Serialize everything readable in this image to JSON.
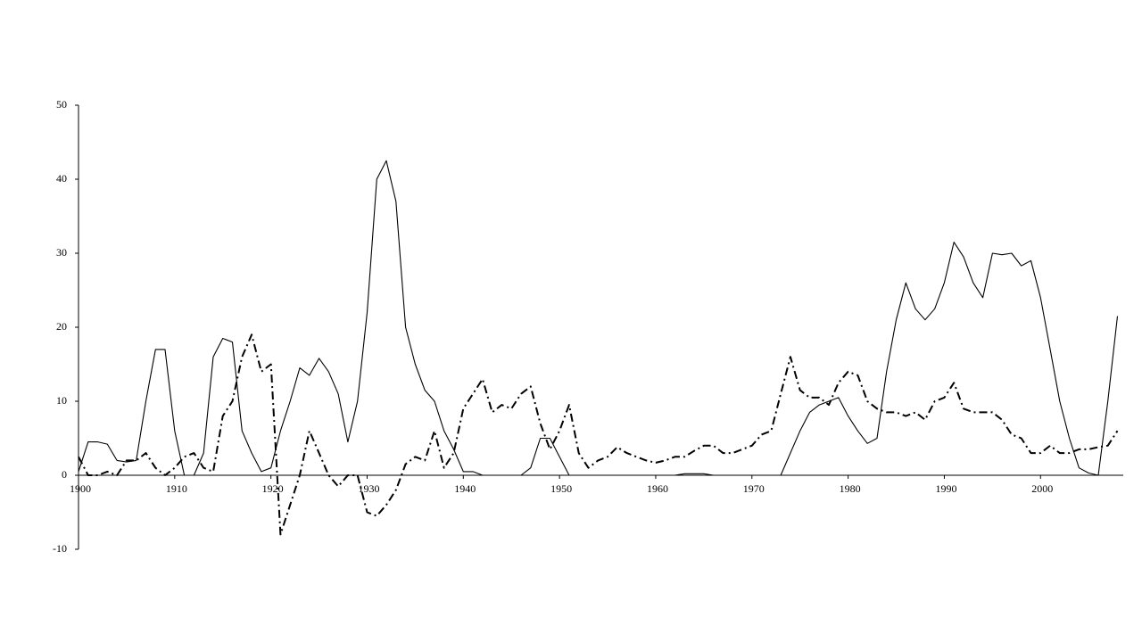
{
  "chart_data": {
    "type": "line",
    "x": [
      1900,
      1901,
      1902,
      1903,
      1904,
      1905,
      1906,
      1907,
      1908,
      1909,
      1910,
      1911,
      1912,
      1913,
      1914,
      1915,
      1916,
      1917,
      1918,
      1919,
      1920,
      1921,
      1922,
      1923,
      1924,
      1925,
      1926,
      1927,
      1928,
      1929,
      1930,
      1931,
      1932,
      1933,
      1934,
      1935,
      1936,
      1937,
      1938,
      1939,
      1940,
      1941,
      1942,
      1943,
      1944,
      1945,
      1946,
      1947,
      1948,
      1949,
      1950,
      1951,
      1952,
      1953,
      1954,
      1955,
      1956,
      1957,
      1958,
      1959,
      1960,
      1961,
      1962,
      1963,
      1964,
      1965,
      1966,
      1967,
      1968,
      1969,
      1970,
      1971,
      1972,
      1973,
      1974,
      1975,
      1976,
      1977,
      1978,
      1979,
      1980,
      1981,
      1982,
      1983,
      1984,
      1985,
      1986,
      1987,
      1988,
      1989,
      1990,
      1991,
      1992,
      1993,
      1994,
      1995,
      1996,
      1997,
      1998,
      1999,
      2000,
      2001,
      2002,
      2003,
      2004,
      2005,
      2006,
      2007,
      2008
    ],
    "series": [
      {
        "color": "#000000",
        "dash": "solid",
        "values": [
          0.5,
          4.5,
          4.5,
          4.2,
          2,
          1.8,
          2,
          10,
          17,
          17,
          6,
          0,
          0,
          3,
          16,
          18.5,
          18,
          6,
          3,
          0.5,
          1,
          6,
          10,
          14.5,
          13.5,
          15.8,
          14,
          11,
          4.5,
          10,
          22,
          40,
          42.5,
          37,
          20,
          15,
          11.5,
          10,
          6,
          3.5,
          0.5,
          0.5,
          0,
          0,
          0,
          0,
          0,
          1,
          5,
          5,
          2.5,
          0,
          0,
          0,
          0,
          0,
          0,
          0,
          0,
          0,
          0,
          0,
          0,
          0.2,
          0.2,
          0.2,
          0,
          0,
          0,
          0,
          0,
          0,
          0,
          0,
          3,
          6,
          8.5,
          9.5,
          10,
          10.5,
          8,
          6,
          4.3,
          5,
          14,
          21,
          26,
          22.5,
          21,
          22.5,
          26,
          31.5,
          29.5,
          26,
          24,
          30,
          29.8,
          30,
          28.3,
          29,
          24,
          17,
          10,
          5,
          1,
          0.3,
          0,
          10,
          21.5
        ]
      },
      {
        "color": "#000000",
        "dash": "dash-dot",
        "values": [
          2.5,
          0,
          0,
          0.5,
          0,
          2,
          2,
          3,
          1,
          0,
          1,
          2.5,
          3,
          1,
          0.5,
          8,
          10,
          16,
          19,
          14,
          15,
          -8,
          -4,
          0,
          6,
          3,
          0,
          -1.5,
          0,
          0,
          -5,
          -5.5,
          -4,
          -2,
          1.5,
          2.5,
          2,
          6,
          1,
          3,
          9,
          11,
          13,
          8.5,
          9.5,
          9,
          11,
          12,
          7,
          3.5,
          6,
          9.5,
          3,
          1,
          2,
          2.5,
          3.8,
          3,
          2.5,
          2,
          1.7,
          2,
          2.5,
          2.5,
          3.3,
          4,
          4,
          3,
          3,
          3.5,
          4,
          5.5,
          6,
          11,
          16,
          11.5,
          10.5,
          10.5,
          9.5,
          12.5,
          14,
          13.5,
          10,
          9,
          8.5,
          8.5,
          8,
          8.5,
          7.5,
          10,
          10.5,
          12.5,
          9,
          8.5,
          8.5,
          8.5,
          7.5,
          5.5,
          5,
          3,
          3,
          4,
          3,
          3,
          3.5,
          3.5,
          3.8,
          4,
          6
        ]
      }
    ],
    "xlim": [
      1900,
      2008.6
    ],
    "xticks": [
      1900,
      1910,
      1920,
      1930,
      1940,
      1950,
      1960,
      1970,
      1980,
      1990,
      2000
    ],
    "ylim": [
      -10,
      50
    ],
    "yticks": [
      -10,
      0,
      10,
      20,
      30,
      40,
      50
    ],
    "grid": false
  }
}
